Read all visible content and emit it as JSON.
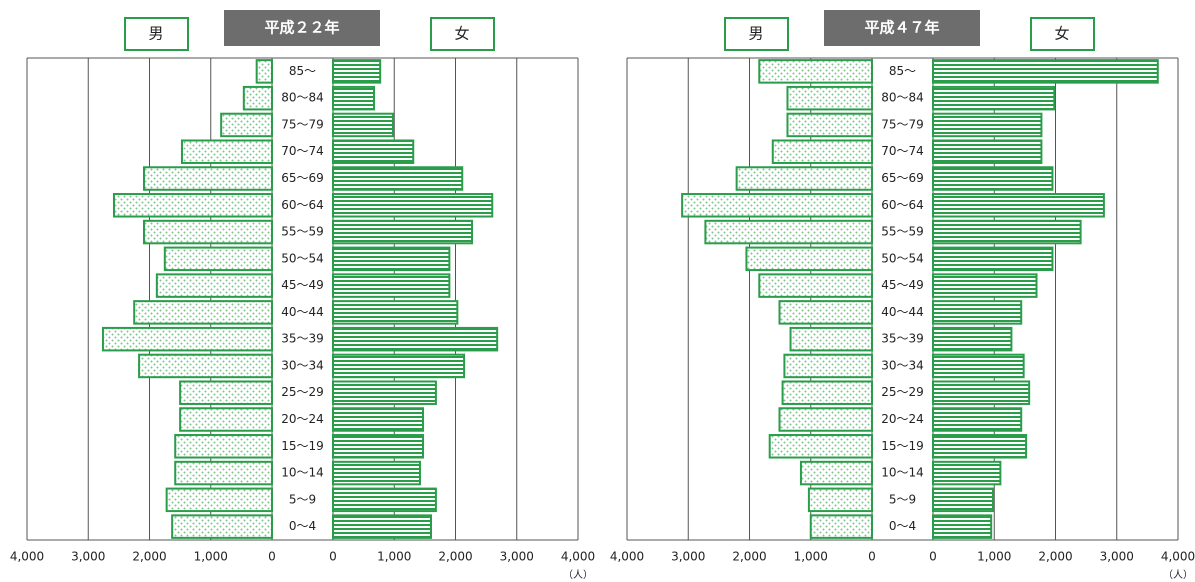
{
  "chart_data": [
    {
      "type": "pyramid",
      "title": "平成２２年",
      "unit": "（人）",
      "color": "#2a9d4a",
      "categories": [
        "0～4",
        "5～9",
        "10～14",
        "15～19",
        "20～24",
        "25～29",
        "30～34",
        "35～39",
        "40～44",
        "45～49",
        "50～54",
        "55～59",
        "60～64",
        "65～69",
        "70～74",
        "75～79",
        "80～84",
        "85～"
      ],
      "series": [
        {
          "name": "男",
          "values": [
            1630,
            1720,
            1580,
            1580,
            1500,
            1500,
            2170,
            2760,
            2250,
            1880,
            1750,
            2090,
            2580,
            2090,
            1470,
            830,
            460,
            250
          ]
        },
        {
          "name": "女",
          "values": [
            1600,
            1680,
            1420,
            1470,
            1470,
            1680,
            2140,
            2680,
            2030,
            1900,
            1900,
            2270,
            2600,
            2110,
            1310,
            980,
            670,
            770
          ]
        }
      ],
      "xlim": [
        0,
        4000
      ],
      "xticks": [
        0,
        {
          "value": 1000,
          "label": "1,000"
        },
        {
          "value": 2000,
          "label": "2,000"
        },
        {
          "value": 3000,
          "label": "3,000"
        },
        {
          "value": 4000,
          "label": "4,000"
        }
      ],
      "grid": true
    },
    {
      "type": "pyramid",
      "title": "平成４７年",
      "unit": "（人）",
      "color": "#2a9d4a",
      "categories": [
        "0～4",
        "5～9",
        "10～14",
        "15～19",
        "20～24",
        "25～29",
        "30～34",
        "35～39",
        "40～44",
        "45～49",
        "50～54",
        "55～59",
        "60～64",
        "65～69",
        "70～74",
        "75～79",
        "80～84",
        "85～"
      ],
      "series": [
        {
          "name": "男",
          "values": [
            1000,
            1030,
            1160,
            1670,
            1510,
            1460,
            1430,
            1330,
            1510,
            1840,
            2050,
            2720,
            3100,
            2210,
            1620,
            1380,
            1380,
            1840
          ]
        },
        {
          "name": "女",
          "values": [
            950,
            980,
            1100,
            1520,
            1440,
            1570,
            1480,
            1280,
            1440,
            1690,
            1950,
            2410,
            2790,
            1950,
            1770,
            1770,
            1980,
            3670
          ]
        }
      ],
      "xlim": [
        0,
        4000
      ],
      "xticks": [
        0,
        {
          "value": 1000,
          "label": "1,000"
        },
        {
          "value": 2000,
          "label": "2,000"
        },
        {
          "value": 3000,
          "label": "3,000"
        },
        {
          "value": 4000,
          "label": "4,000"
        }
      ],
      "grid": true
    }
  ]
}
